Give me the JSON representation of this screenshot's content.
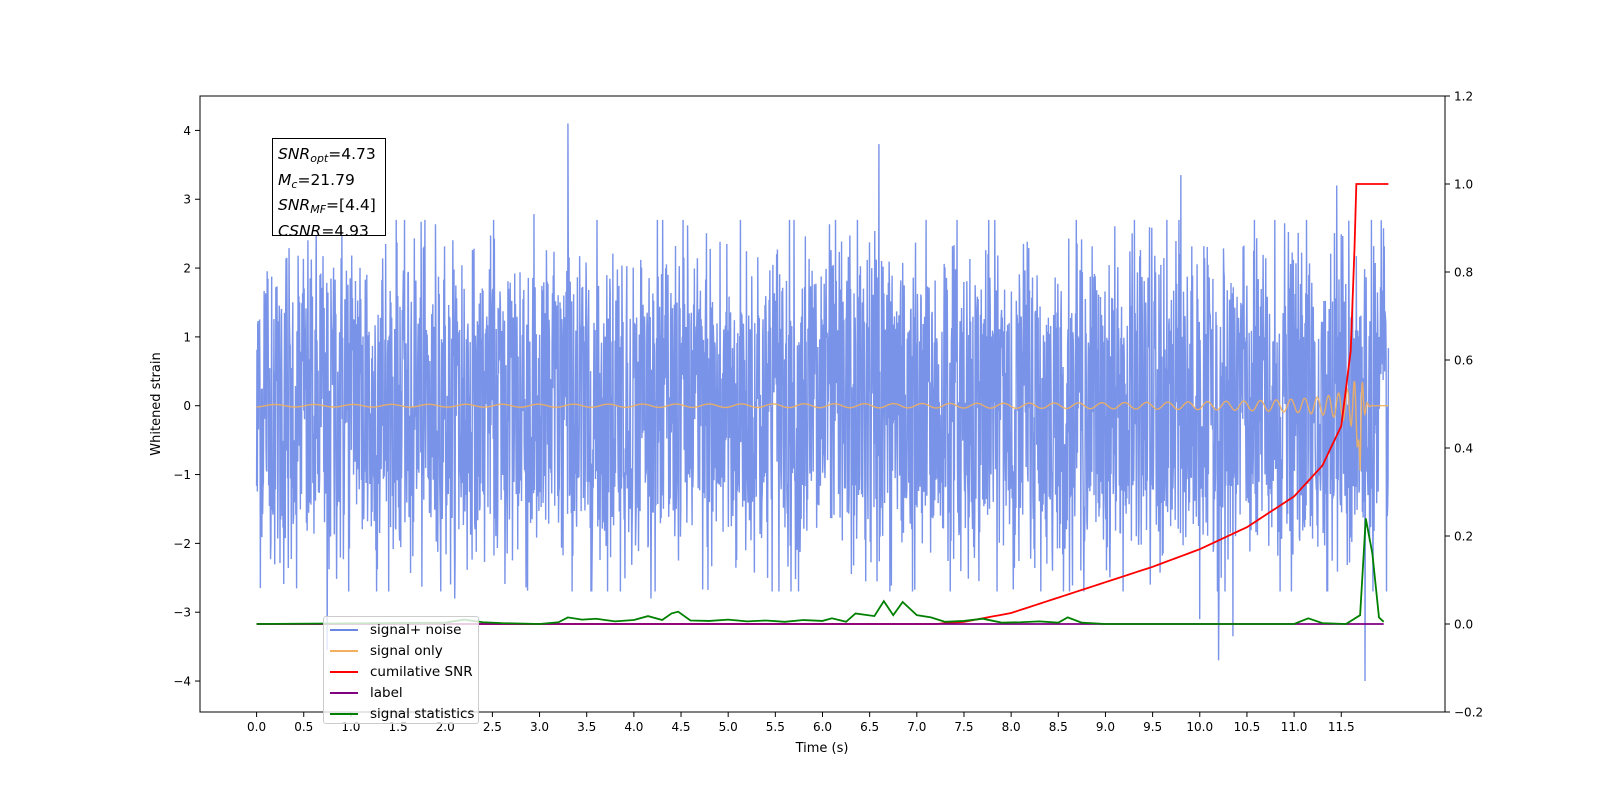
{
  "chart_data": {
    "type": "line",
    "xlabel": "Time (s)",
    "ylabel_left": "Whitened strain",
    "ylabel_right": "",
    "xlim": [
      -0.6,
      12.6
    ],
    "ylim_left": [
      -4.45,
      4.5
    ],
    "ylim_right": [
      -0.2,
      1.2
    ],
    "x_ticks": [
      0.0,
      0.5,
      1.0,
      1.5,
      2.0,
      2.5,
      3.0,
      3.5,
      4.0,
      4.5,
      5.0,
      5.5,
      6.0,
      6.5,
      7.0,
      7.5,
      8.0,
      8.5,
      9.0,
      9.5,
      10.0,
      10.5,
      11.0,
      11.5
    ],
    "x_tick_labels": [
      "0.0",
      "0.5",
      "1.0",
      "1.5",
      "2.0",
      "2.5",
      "3.0",
      "3.5",
      "4.0",
      "4.5",
      "5.0",
      "5.5",
      "6.0",
      "6.5",
      "7.0",
      "7.5",
      "8.0",
      "8.5",
      "9.0",
      "9.5",
      "10.0",
      "10.5",
      "11.0",
      "11.5"
    ],
    "y_ticks_left": [
      -4,
      -3,
      -2,
      -1,
      0,
      1,
      2,
      3,
      4
    ],
    "y_tick_labels_left": [
      "−4",
      "−3",
      "−2",
      "−1",
      "0",
      "1",
      "2",
      "3",
      "4"
    ],
    "y_ticks_right": [
      -0.2,
      0.0,
      0.2,
      0.4,
      0.6,
      0.8,
      1.0,
      1.2
    ],
    "y_tick_labels_right": [
      "−0.2",
      "0.0",
      "0.2",
      "0.4",
      "0.6",
      "0.8",
      "1.0",
      "1.2"
    ],
    "grid": false,
    "legend_position": "lower-left",
    "annotation": {
      "snr_opt": "4.73",
      "mc": "21.79",
      "snr_mf": "[4.4]",
      "csnr": "4.93"
    },
    "series": [
      {
        "name": "signal+ noise",
        "axis": "left",
        "color": "#6a87e6",
        "kind": "noise",
        "x_range": [
          0.0,
          12.0
        ],
        "envelope_abs": 2.4,
        "spikes": [
          [
            3.3,
            4.1
          ],
          [
            6.6,
            3.8
          ],
          [
            0.75,
            -3.55
          ],
          [
            10.2,
            -3.7
          ],
          [
            10.35,
            -3.35
          ],
          [
            11.75,
            -4.0
          ],
          [
            10.0,
            -3.1
          ],
          [
            9.8,
            3.35
          ],
          [
            11.45,
            3.2
          ]
        ]
      },
      {
        "name": "signal only",
        "axis": "left",
        "color": "#f0b060",
        "kind": "chirp",
        "x_range": [
          0.0,
          12.0
        ],
        "peak_amplitude": 0.95,
        "merger_x": 11.7,
        "trough_min": -0.95
      },
      {
        "name": "cumilative SNR",
        "axis": "right",
        "color": "#ff0000",
        "x": [
          0.0,
          7.2,
          7.5,
          8.0,
          8.5,
          9.0,
          9.5,
          10.0,
          10.5,
          11.0,
          11.3,
          11.5,
          11.6,
          11.64,
          11.66,
          11.7,
          12.0
        ],
        "y": [
          0.0,
          0.0,
          0.005,
          0.025,
          0.06,
          0.095,
          0.13,
          0.17,
          0.22,
          0.29,
          0.36,
          0.45,
          0.62,
          0.85,
          1.0,
          1.0,
          1.0
        ]
      },
      {
        "name": "label",
        "axis": "right",
        "color": "#800080",
        "x": [
          0.0,
          11.95
        ],
        "y": [
          0.0,
          0.0
        ]
      },
      {
        "name": "signal statistics",
        "axis": "right",
        "color": "#008000",
        "x": [
          0.0,
          2.0,
          2.2,
          2.4,
          2.6,
          3.0,
          3.2,
          3.3,
          3.45,
          3.6,
          3.8,
          4.0,
          4.15,
          4.3,
          4.4,
          4.47,
          4.6,
          4.8,
          5.0,
          5.2,
          5.4,
          5.6,
          5.8,
          6.0,
          6.1,
          6.25,
          6.35,
          6.55,
          6.65,
          6.75,
          6.85,
          7.0,
          7.15,
          7.3,
          7.5,
          7.7,
          7.9,
          8.1,
          8.3,
          8.5,
          8.6,
          8.75,
          9.0,
          9.3,
          10.0,
          11.0,
          11.15,
          11.3,
          11.55,
          11.7,
          11.76,
          11.83,
          11.9,
          11.95
        ],
        "y": [
          0.0,
          0.003,
          0.01,
          0.004,
          0.002,
          0.0,
          0.004,
          0.015,
          0.01,
          0.012,
          0.006,
          0.009,
          0.018,
          0.009,
          0.024,
          0.028,
          0.008,
          0.007,
          0.01,
          0.006,
          0.008,
          0.005,
          0.009,
          0.007,
          0.013,
          0.005,
          0.024,
          0.018,
          0.052,
          0.02,
          0.05,
          0.02,
          0.015,
          0.005,
          0.007,
          0.012,
          0.003,
          0.004,
          0.006,
          0.003,
          0.015,
          0.003,
          0.0,
          0.0,
          0.0,
          0.0,
          0.013,
          0.002,
          0.0,
          0.02,
          0.24,
          0.16,
          0.015,
          0.005
        ]
      }
    ]
  }
}
